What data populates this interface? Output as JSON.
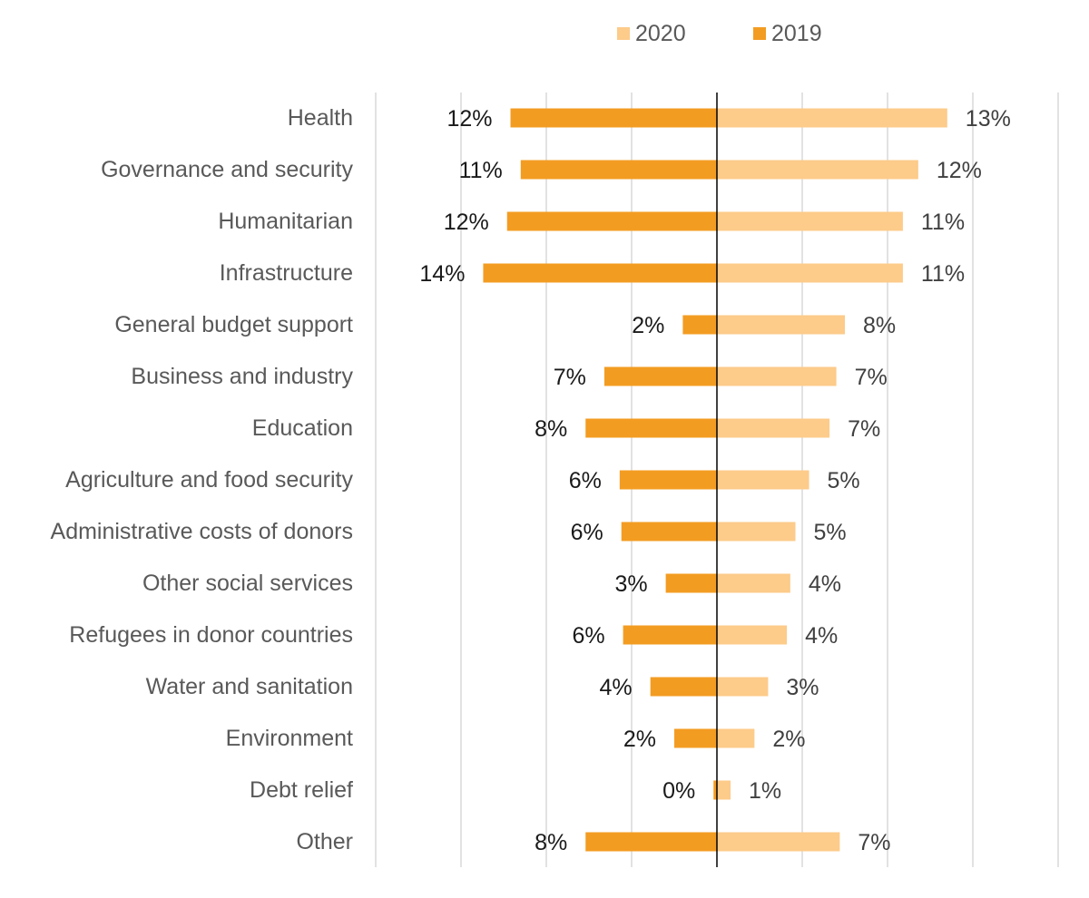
{
  "chart_data": {
    "type": "bar",
    "orientation": "horizontal-diverging",
    "categories": [
      "Health",
      "Governance and security",
      "Humanitarian",
      "Infrastructure",
      "General budget support",
      "Business and industry",
      "Education",
      "Agriculture and food security",
      "Administrative costs of donors",
      "Other social services",
      "Refugees in donor countries",
      "Water and sanitation",
      "Environment",
      "Debt relief",
      "Other"
    ],
    "series": [
      {
        "name": "2020",
        "side": "right",
        "color": "#FDCB8A",
        "values": [
          13.5,
          11.8,
          10.9,
          10.9,
          7.5,
          7.0,
          6.6,
          5.4,
          4.6,
          4.3,
          4.1,
          3.0,
          2.2,
          0.8,
          7.2
        ],
        "labels": [
          "13%",
          "12%",
          "11%",
          "11%",
          "8%",
          "7%",
          "7%",
          "5%",
          "5%",
          "4%",
          "4%",
          "3%",
          "2%",
          "1%",
          "7%"
        ]
      },
      {
        "name": "2019",
        "side": "left",
        "color": "#F39C22",
        "values": [
          12.1,
          11.5,
          12.3,
          13.7,
          2.0,
          6.6,
          7.7,
          5.7,
          5.6,
          3.0,
          5.5,
          3.9,
          2.5,
          0.2,
          7.7
        ],
        "labels": [
          "12%",
          "11%",
          "12%",
          "14%",
          "2%",
          "7%",
          "8%",
          "6%",
          "6%",
          "3%",
          "6%",
          "4%",
          "2%",
          "0%",
          "8%"
        ]
      }
    ],
    "xlim": [
      -20,
      20
    ],
    "grid": true,
    "legend_position": "top"
  }
}
